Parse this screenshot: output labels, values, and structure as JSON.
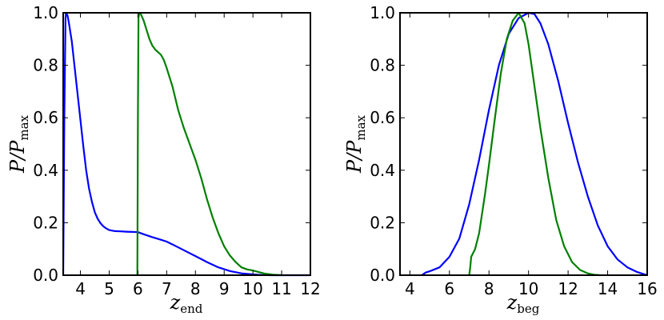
{
  "chart_data": [
    {
      "type": "line",
      "xlabel": {
        "main": "z",
        "sub": "end"
      },
      "ylabel": {
        "main": "P/P",
        "sub": "max"
      },
      "xlim": [
        3.4,
        12.0
      ],
      "ylim": [
        0.0,
        1.0
      ],
      "xticks": [
        4,
        5,
        6,
        7,
        8,
        9,
        10,
        11,
        12
      ],
      "xtick_labels": [
        "4",
        "5",
        "6",
        "7",
        "8",
        "9",
        "10",
        "11",
        "12"
      ],
      "yticks": [
        0.0,
        0.2,
        0.4,
        0.6,
        0.8,
        1.0
      ],
      "ytick_labels": [
        "0.0",
        "0.2",
        "0.4",
        "0.6",
        "0.8",
        "1.0"
      ],
      "grid": false,
      "series": [
        {
          "color": "#0000ff",
          "x": [
            3.4,
            3.44,
            3.48,
            3.5,
            3.55,
            3.6,
            3.7,
            3.8,
            3.9,
            4.0,
            4.1,
            4.2,
            4.3,
            4.4,
            4.5,
            4.6,
            4.7,
            4.8,
            4.9,
            5.0,
            5.2,
            5.4,
            5.6,
            5.8,
            6.0,
            6.2,
            6.5,
            6.8,
            7.0,
            7.3,
            7.6,
            8.0,
            8.4,
            8.8,
            9.2,
            9.6,
            10.0,
            10.3,
            10.6,
            12.0
          ],
          "y": [
            0.0,
            0.6,
            0.98,
            1.0,
            0.99,
            0.96,
            0.89,
            0.79,
            0.69,
            0.59,
            0.49,
            0.4,
            0.33,
            0.28,
            0.24,
            0.215,
            0.198,
            0.186,
            0.178,
            0.172,
            0.168,
            0.167,
            0.166,
            0.165,
            0.164,
            0.156,
            0.145,
            0.135,
            0.128,
            0.112,
            0.095,
            0.073,
            0.05,
            0.03,
            0.016,
            0.007,
            0.003,
            0.001,
            0.0,
            0.0
          ]
        },
        {
          "color": "#008000",
          "x": [
            5.98,
            6.0,
            6.02,
            6.05,
            6.1,
            6.2,
            6.3,
            6.4,
            6.5,
            6.6,
            6.7,
            6.8,
            6.9,
            7.0,
            7.2,
            7.4,
            7.6,
            7.8,
            8.0,
            8.2,
            8.4,
            8.6,
            8.8,
            9.0,
            9.2,
            9.4,
            9.6,
            9.8,
            10.0,
            10.2,
            10.4,
            10.7,
            11.0
          ],
          "y": [
            0.0,
            0.6,
            0.98,
            1.0,
            0.995,
            0.97,
            0.935,
            0.9,
            0.875,
            0.86,
            0.85,
            0.84,
            0.82,
            0.79,
            0.72,
            0.63,
            0.56,
            0.5,
            0.44,
            0.37,
            0.29,
            0.22,
            0.16,
            0.11,
            0.075,
            0.05,
            0.03,
            0.022,
            0.018,
            0.012,
            0.006,
            0.002,
            0.0
          ]
        }
      ]
    },
    {
      "type": "line",
      "xlabel": {
        "main": "z",
        "sub": "beg"
      },
      "ylabel": {
        "main": "P/P",
        "sub": "max"
      },
      "xlim": [
        3.5,
        16.0
      ],
      "ylim": [
        0.0,
        1.0
      ],
      "xticks": [
        4,
        6,
        8,
        10,
        12,
        14,
        16
      ],
      "xtick_labels": [
        "4",
        "6",
        "8",
        "10",
        "12",
        "14",
        "16"
      ],
      "yticks": [
        0.0,
        0.2,
        0.4,
        0.6,
        0.8,
        1.0
      ],
      "ytick_labels": [
        "0.0",
        "0.2",
        "0.4",
        "0.6",
        "0.8",
        "1.0"
      ],
      "grid": false,
      "series": [
        {
          "color": "#0000ff",
          "x": [
            4.6,
            4.8,
            5.0,
            5.5,
            6.0,
            6.5,
            7.0,
            7.5,
            8.0,
            8.5,
            9.0,
            9.5,
            10.0,
            10.3,
            10.6,
            11.0,
            11.5,
            12.0,
            12.5,
            13.0,
            13.5,
            14.0,
            14.5,
            15.0,
            15.5,
            16.0
          ],
          "y": [
            0.0,
            0.01,
            0.015,
            0.03,
            0.07,
            0.14,
            0.27,
            0.44,
            0.63,
            0.8,
            0.92,
            0.98,
            1.0,
            0.995,
            0.96,
            0.88,
            0.74,
            0.58,
            0.43,
            0.3,
            0.19,
            0.11,
            0.06,
            0.03,
            0.012,
            0.0
          ]
        },
        {
          "color": "#008000",
          "x": [
            7.0,
            7.05,
            7.1,
            7.3,
            7.5,
            7.8,
            8.0,
            8.3,
            8.6,
            8.9,
            9.2,
            9.5,
            9.8,
            10.0,
            10.3,
            10.6,
            11.0,
            11.4,
            11.8,
            12.2,
            12.6,
            13.0,
            13.3,
            13.6
          ],
          "y": [
            0.0,
            0.03,
            0.07,
            0.1,
            0.16,
            0.31,
            0.42,
            0.6,
            0.77,
            0.9,
            0.97,
            1.0,
            0.96,
            0.88,
            0.72,
            0.56,
            0.37,
            0.21,
            0.11,
            0.05,
            0.02,
            0.007,
            0.002,
            0.0
          ]
        }
      ]
    }
  ]
}
